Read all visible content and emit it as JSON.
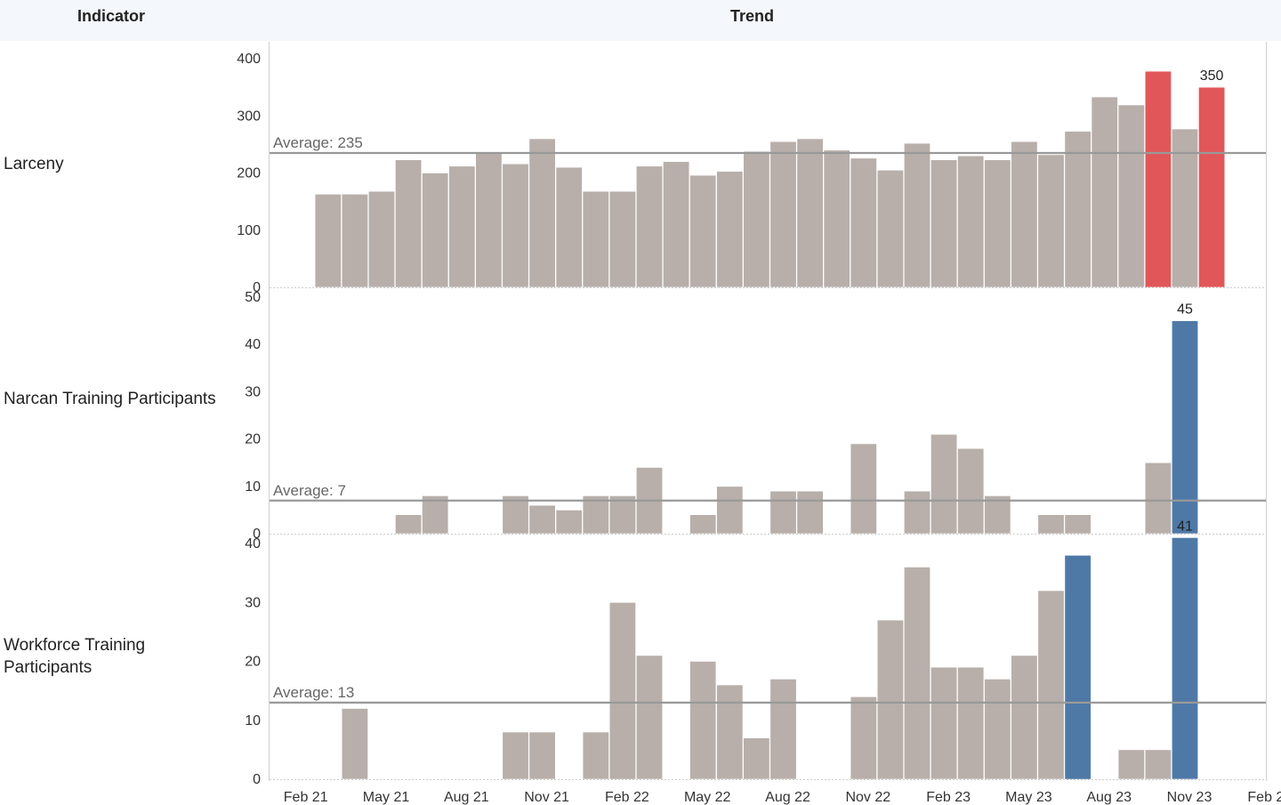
{
  "header": {
    "indicator": "Indicator",
    "trend": "Trend"
  },
  "colors": {
    "bar": "#b8afaa",
    "highlight_red": "#e15759",
    "highlight_blue": "#4e79a7",
    "avg_line": "#999999",
    "avg_text": "#666666",
    "header_bg": "#f4f7fb"
  },
  "x_axis_labels": [
    "Feb 21",
    "May 21",
    "Aug 21",
    "Nov 21",
    "Feb 22",
    "May 22",
    "Aug 22",
    "Nov 22",
    "Feb 23",
    "May 23",
    "Aug 23",
    "Nov 23",
    "Feb 24"
  ],
  "chart_data": [
    {
      "type": "bar",
      "indicator": "Larceny",
      "categories": [
        "Feb 21",
        "Mar 21",
        "Apr 21",
        "May 21",
        "Jun 21",
        "Jul 21",
        "Aug 21",
        "Sep 21",
        "Oct 21",
        "Nov 21",
        "Dec 21",
        "Jan 22",
        "Feb 22",
        "Mar 22",
        "Apr 22",
        "May 22",
        "Jun 22",
        "Jul 22",
        "Aug 22",
        "Sep 22",
        "Oct 22",
        "Nov 22",
        "Dec 22",
        "Jan 23",
        "Feb 23",
        "Mar 23",
        "Apr 23",
        "May 23",
        "Jun 23",
        "Jul 23",
        "Aug 23",
        "Sep 23",
        "Oct 23",
        "Nov 23",
        "Dec 23",
        "Jan 24"
      ],
      "values": [
        null,
        163,
        163,
        168,
        223,
        200,
        212,
        237,
        216,
        260,
        210,
        168,
        168,
        212,
        220,
        196,
        203,
        238,
        255,
        260,
        240,
        226,
        205,
        252,
        223,
        230,
        223,
        255,
        232,
        273,
        333,
        319,
        378,
        277,
        350,
        null
      ],
      "highlight": [
        false,
        false,
        false,
        false,
        false,
        false,
        false,
        false,
        false,
        false,
        false,
        false,
        false,
        false,
        false,
        false,
        false,
        false,
        false,
        false,
        false,
        false,
        false,
        false,
        false,
        false,
        false,
        false,
        false,
        false,
        false,
        false,
        true,
        false,
        true,
        false
      ],
      "highlight_color": "red",
      "average": 235,
      "average_label": "Average: 235",
      "ylim": [
        0,
        400
      ],
      "yticks": [
        0,
        100,
        200,
        300,
        400
      ],
      "data_label": "350"
    },
    {
      "type": "bar",
      "indicator": "Narcan Training Participants",
      "categories": [
        "Feb 21",
        "Mar 21",
        "Apr 21",
        "May 21",
        "Jun 21",
        "Jul 21",
        "Aug 21",
        "Sep 21",
        "Oct 21",
        "Nov 21",
        "Dec 21",
        "Jan 22",
        "Feb 22",
        "Mar 22",
        "Apr 22",
        "May 22",
        "Jun 22",
        "Jul 22",
        "Aug 22",
        "Sep 22",
        "Oct 22",
        "Nov 22",
        "Dec 22",
        "Jan 23",
        "Feb 23",
        "Mar 23",
        "Apr 23",
        "May 23",
        "Jun 23",
        "Jul 23",
        "Aug 23",
        "Sep 23",
        "Oct 23",
        "Nov 23",
        "Dec 23",
        "Jan 24"
      ],
      "values": [
        null,
        null,
        null,
        null,
        4,
        8,
        null,
        null,
        8,
        6,
        5,
        8,
        8,
        14,
        null,
        4,
        10,
        null,
        9,
        9,
        null,
        19,
        null,
        9,
        21,
        18,
        8,
        null,
        4,
        4,
        null,
        null,
        15,
        45,
        null,
        null
      ],
      "highlight": [
        false,
        false,
        false,
        false,
        false,
        false,
        false,
        false,
        false,
        false,
        false,
        false,
        false,
        false,
        false,
        false,
        false,
        false,
        false,
        false,
        false,
        false,
        false,
        false,
        false,
        false,
        false,
        false,
        false,
        false,
        false,
        false,
        false,
        true,
        false,
        false
      ],
      "highlight_color": "blue",
      "average": 7,
      "average_label": "Average: 7",
      "ylim": [
        0,
        50
      ],
      "yticks": [
        0,
        10,
        20,
        30,
        40,
        50
      ],
      "data_label": "45"
    },
    {
      "type": "bar",
      "indicator": "Workforce Training Participants",
      "categories": [
        "Feb 21",
        "Mar 21",
        "Apr 21",
        "May 21",
        "Jun 21",
        "Jul 21",
        "Aug 21",
        "Sep 21",
        "Oct 21",
        "Nov 21",
        "Dec 21",
        "Jan 22",
        "Feb 22",
        "Mar 22",
        "Apr 22",
        "May 22",
        "Jun 22",
        "Jul 22",
        "Aug 22",
        "Sep 22",
        "Oct 22",
        "Nov 22",
        "Dec 22",
        "Jan 23",
        "Feb 23",
        "Mar 23",
        "Apr 23",
        "May 23",
        "Jun 23",
        "Jul 23",
        "Aug 23",
        "Sep 23",
        "Oct 23",
        "Nov 23",
        "Dec 23",
        "Jan 24"
      ],
      "values": [
        null,
        null,
        12,
        null,
        null,
        null,
        null,
        null,
        8,
        8,
        null,
        8,
        30,
        21,
        null,
        20,
        16,
        7,
        17,
        null,
        null,
        14,
        27,
        36,
        19,
        19,
        17,
        21,
        32,
        38,
        null,
        5,
        5,
        41,
        null,
        null
      ],
      "highlight": [
        false,
        false,
        false,
        false,
        false,
        false,
        false,
        false,
        false,
        false,
        false,
        false,
        false,
        false,
        false,
        false,
        false,
        false,
        false,
        false,
        false,
        false,
        false,
        false,
        false,
        false,
        false,
        false,
        false,
        true,
        false,
        false,
        false,
        true,
        false,
        false
      ],
      "highlight_color": "blue",
      "average": 13,
      "average_label": "Average: 13",
      "ylim": [
        0,
        45
      ],
      "yticks": [
        0,
        10,
        20,
        30,
        40
      ],
      "data_label": "41"
    }
  ]
}
